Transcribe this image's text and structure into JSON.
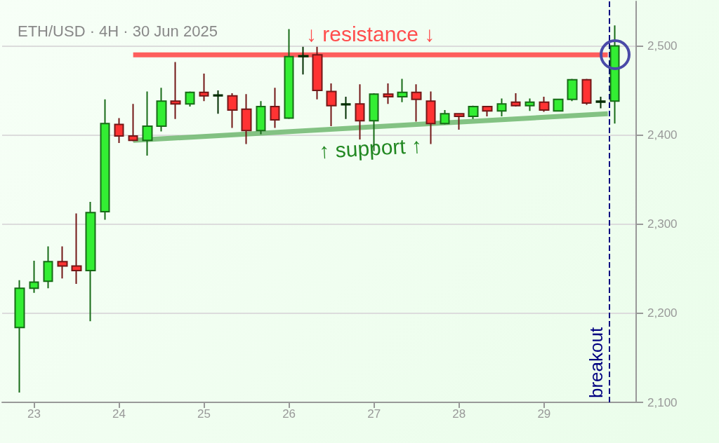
{
  "chart_data": {
    "type": "candlestick",
    "title": "ETH/USD · 4H · 30 Jun 2025",
    "x": [
      "2025-06-22T20:00",
      "2025-06-23T00:00",
      "2025-06-23T04:00",
      "2025-06-23T08:00",
      "2025-06-23T12:00",
      "2025-06-23T16:00",
      "2025-06-23T20:00",
      "2025-06-24T00:00",
      "2025-06-24T04:00",
      "2025-06-24T08:00",
      "2025-06-24T12:00",
      "2025-06-24T16:00",
      "2025-06-24T20:00",
      "2025-06-25T00:00",
      "2025-06-25T04:00",
      "2025-06-25T08:00",
      "2025-06-25T12:00",
      "2025-06-25T16:00",
      "2025-06-25T20:00",
      "2025-06-26T00:00",
      "2025-06-26T04:00",
      "2025-06-26T08:00",
      "2025-06-26T12:00",
      "2025-06-26T16:00",
      "2025-06-26T20:00",
      "2025-06-27T00:00",
      "2025-06-27T04:00",
      "2025-06-27T08:00",
      "2025-06-27T12:00",
      "2025-06-27T16:00",
      "2025-06-27T20:00",
      "2025-06-28T00:00",
      "2025-06-28T04:00",
      "2025-06-28T08:00",
      "2025-06-28T12:00",
      "2025-06-28T16:00",
      "2025-06-28T20:00",
      "2025-06-29T00:00",
      "2025-06-29T04:00",
      "2025-06-29T08:00",
      "2025-06-29T12:00",
      "2025-06-29T16:00",
      "2025-06-29T20:00"
    ],
    "series": [
      {
        "type": "candlestick",
        "ohlc": [
          [
            2184,
            2237,
            2111,
            2228
          ],
          [
            2228,
            2259,
            2223,
            2235
          ],
          [
            2236,
            2275,
            2228,
            2258
          ],
          [
            2258,
            2275,
            2239,
            2253
          ],
          [
            2253,
            2312,
            2233,
            2248
          ],
          [
            2248,
            2325,
            2191,
            2313
          ],
          [
            2314,
            2440,
            2305,
            2413
          ],
          [
            2412,
            2419,
            2391,
            2399
          ],
          [
            2399,
            2435,
            2393,
            2394
          ],
          [
            2394,
            2449,
            2377,
            2410
          ],
          [
            2410,
            2453,
            2404,
            2438
          ],
          [
            2438,
            2482,
            2418,
            2435
          ],
          [
            2435,
            2449,
            2432,
            2448
          ],
          [
            2448,
            2469,
            2438,
            2444
          ],
          [
            2444,
            2450,
            2424,
            2445
          ],
          [
            2444,
            2447,
            2408,
            2428
          ],
          [
            2429,
            2446,
            2390,
            2405
          ],
          [
            2405,
            2438,
            2401,
            2432
          ],
          [
            2432,
            2453,
            2408,
            2417
          ],
          [
            2419,
            2519,
            2418,
            2488
          ],
          [
            2488,
            2499,
            2468,
            2489
          ],
          [
            2490,
            2499,
            2440,
            2450
          ],
          [
            2449,
            2458,
            2410,
            2433
          ],
          [
            2434,
            2443,
            2418,
            2435
          ],
          [
            2435,
            2457,
            2395,
            2416
          ],
          [
            2416,
            2447,
            2382,
            2446
          ],
          [
            2446,
            2458,
            2435,
            2443
          ],
          [
            2443,
            2463,
            2437,
            2448
          ],
          [
            2448,
            2457,
            2415,
            2440
          ],
          [
            2438,
            2449,
            2390,
            2413
          ],
          [
            2413,
            2428,
            2412,
            2424
          ],
          [
            2424,
            2424,
            2406,
            2421
          ],
          [
            2421,
            2433,
            2418,
            2432
          ],
          [
            2432,
            2432,
            2421,
            2427
          ],
          [
            2427,
            2441,
            2421,
            2435
          ],
          [
            2437,
            2447,
            2432,
            2433
          ],
          [
            2433,
            2441,
            2427,
            2437
          ],
          [
            2437,
            2443,
            2426,
            2428
          ],
          [
            2427,
            2440,
            2427,
            2440
          ],
          [
            2440,
            2463,
            2438,
            2462
          ],
          [
            2462,
            2463,
            2434,
            2436
          ],
          [
            2437,
            2443,
            2430,
            2438
          ],
          [
            2438,
            2523,
            2413,
            2500
          ]
        ],
        "colors": [
          "#33ee33",
          "#33ee33",
          "#33ee33",
          "#ff3333",
          "#ff3333",
          "#33ee33",
          "#33ee33",
          "#ff3333",
          "#ff3333",
          "#33ee33",
          "#33ee33",
          "#ff3333",
          "#33ee33",
          "#ff3333",
          "#006400",
          "#ff3333",
          "#ff3333",
          "#33ee33",
          "#ff3333",
          "#33ee33",
          "#006400",
          "#ff3333",
          "#ff3333",
          "#006400",
          "#ff3333",
          "#33ee33",
          "#ff3333",
          "#33ee33",
          "#ff3333",
          "#ff3333",
          "#33ee33",
          "#ff3333",
          "#33ee33",
          "#ff3333",
          "#33ee33",
          "#ff3333",
          "#33ee33",
          "#ff3333",
          "#33ee33",
          "#33ee33",
          "#ff3333",
          "#006400",
          "#33ee33"
        ]
      },
      {
        "type": "line",
        "name": "↓ resistance ↓",
        "color": "#ff4d4d",
        "x": [
          "2025-06-24T04:00",
          "2025-06-29T18:00"
        ],
        "values": [
          2490,
          2490
        ]
      },
      {
        "type": "line",
        "name": "↑ support ↑",
        "color": "#77bb77",
        "x": [
          "2025-06-24T04:00",
          "2025-06-29T18:00"
        ],
        "values": [
          2394,
          2424
        ]
      }
    ],
    "xlim": [
      "2025-06-22T15:00",
      "2025-06-30T02:00"
    ],
    "xticks": [
      {
        "value": "2025-06-23",
        "label": "23"
      },
      {
        "value": "2025-06-24",
        "label": "24"
      },
      {
        "value": "2025-06-25",
        "label": "25"
      },
      {
        "value": "2025-06-26",
        "label": "26"
      },
      {
        "value": "2025-06-27",
        "label": "27"
      },
      {
        "value": "2025-06-28",
        "label": "28"
      },
      {
        "value": "2025-06-29",
        "label": "29"
      }
    ],
    "ylim": [
      2100,
      2550
    ],
    "yticks": [
      {
        "value": 2100,
        "label": "2,100"
      },
      {
        "value": 2200,
        "label": "2,200"
      },
      {
        "value": 2300,
        "label": "2,300"
      },
      {
        "value": 2400,
        "label": "2,400"
      },
      {
        "value": 2500,
        "label": "2,500"
      }
    ],
    "ref_lines": [
      {
        "axis": "x",
        "value": "2025-06-29T18:30",
        "label": "breakout",
        "color": "#000080",
        "line_style": "dashed"
      }
    ],
    "grid": "y",
    "legend": false,
    "marker": "none"
  }
}
